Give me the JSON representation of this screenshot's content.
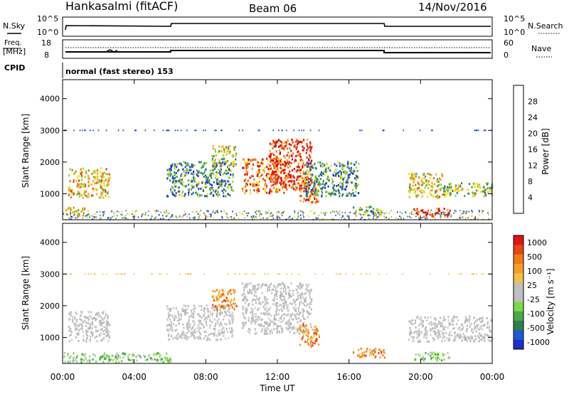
{
  "header": {
    "station": "Hankasalmi (fitACF)",
    "beam": "Beam 06",
    "date": "14/Nov/2016"
  },
  "summary": {
    "nsky_label": "N.Sky",
    "nsearch_label": "N.Search",
    "freq_label_top": "Freq.",
    "freq_label_bottom": "[MHz]",
    "nave_label": "Nave",
    "cpid_label": "CPID",
    "cpid_text": "normal (fast stereo) 153",
    "noise_ticks": [
      "10^5",
      "10^0"
    ],
    "freq_ticks": [
      "18",
      "8"
    ],
    "nave_ticks": [
      "60",
      "0"
    ]
  },
  "chart_data": [
    {
      "type": "heatmap",
      "name": "power",
      "ylabel": "Slant Range [km]",
      "ylim": [
        180,
        4600
      ],
      "yticks": [
        "1000",
        "2000",
        "3000",
        "4000"
      ],
      "colorbar_label": "Power [dB]",
      "colorbar_ticks": [
        "4",
        "8",
        "12",
        "16",
        "20",
        "24",
        "28"
      ],
      "colorbar_colors": [
        "#1f23d8",
        "#2350b8",
        "#2e7f79",
        "#4da24a",
        "#9fcf35",
        "#f0e020",
        "#f6a823",
        "#f06d1f",
        "#e03018",
        "#d40f0f"
      ],
      "regions": [
        {
          "t": [
            0.3,
            2.6
          ],
          "r": [
            850,
            1800
          ],
          "level": 0.6
        },
        {
          "t": [
            0.0,
            1.2
          ],
          "r": [
            300,
            550
          ],
          "level": 0.55
        },
        {
          "t": [
            5.8,
            9.5
          ],
          "r": [
            900,
            2000
          ],
          "level": 0.3
        },
        {
          "t": [
            8.3,
            9.7
          ],
          "r": [
            1850,
            2500
          ],
          "level": 0.5
        },
        {
          "t": [
            10.0,
            12.5
          ],
          "r": [
            1000,
            2100
          ],
          "level": 0.75
        },
        {
          "t": [
            11.5,
            13.9
          ],
          "r": [
            1100,
            2700
          ],
          "level": 0.85
        },
        {
          "t": [
            13.2,
            14.3
          ],
          "r": [
            700,
            1400
          ],
          "level": 0.7
        },
        {
          "t": [
            13.5,
            16.5
          ],
          "r": [
            900,
            2000
          ],
          "level": 0.3
        },
        {
          "t": [
            16.2,
            17.8
          ],
          "r": [
            300,
            600
          ],
          "level": 0.4
        },
        {
          "t": [
            19.3,
            21.2
          ],
          "r": [
            850,
            1650
          ],
          "level": 0.55
        },
        {
          "t": [
            21.2,
            24.0
          ],
          "r": [
            900,
            1350
          ],
          "level": 0.45
        },
        {
          "t": [
            19.6,
            21.6
          ],
          "r": [
            250,
            520
          ],
          "level": 0.9
        }
      ]
    },
    {
      "type": "heatmap",
      "name": "velocity",
      "xlabel": "Time UT",
      "xlim": [
        0,
        24
      ],
      "xticks": [
        "00:00",
        "04:00",
        "08:00",
        "12:00",
        "16:00",
        "20:00",
        "00:00"
      ],
      "ylabel": "Slant Range [km]",
      "ylim": [
        180,
        4600
      ],
      "yticks": [
        "1000",
        "2000",
        "3000",
        "4000"
      ],
      "colorbar_label": "Velocity [m s⁻¹]",
      "colorbar_ticks": [
        "1000",
        "500",
        "100",
        "25",
        "-25",
        "-100",
        "-500",
        "-1000"
      ],
      "colorbar_colors": [
        "#1e2fc8",
        "#1f5bd2",
        "#2f7f4a",
        "#4ca64d",
        "#7cd94a",
        "#bfbfbf",
        "#bfbfbf",
        "#f2c04a",
        "#f3a02a",
        "#f07b1c",
        "#e5461a",
        "#dc1515"
      ],
      "regions": [
        {
          "t": [
            0.3,
            2.6
          ],
          "r": [
            850,
            1800
          ],
          "kind": "gray"
        },
        {
          "t": [
            5.8,
            9.5
          ],
          "r": [
            900,
            2000
          ],
          "kind": "gray"
        },
        {
          "t": [
            8.3,
            9.7
          ],
          "r": [
            1850,
            2500
          ],
          "kind": "orange"
        },
        {
          "t": [
            10.0,
            13.9
          ],
          "r": [
            1100,
            2700
          ],
          "kind": "gray"
        },
        {
          "t": [
            13.2,
            14.3
          ],
          "r": [
            700,
            1400
          ],
          "kind": "orange"
        },
        {
          "t": [
            16.2,
            18.0
          ],
          "r": [
            350,
            650
          ],
          "kind": "orange"
        },
        {
          "t": [
            19.3,
            24.0
          ],
          "r": [
            850,
            1650
          ],
          "kind": "gray"
        },
        {
          "t": [
            19.6,
            21.6
          ],
          "r": [
            250,
            520
          ],
          "kind": "green"
        },
        {
          "t": [
            0.0,
            6.0
          ],
          "r": [
            200,
            500
          ],
          "kind": "green"
        }
      ]
    }
  ]
}
